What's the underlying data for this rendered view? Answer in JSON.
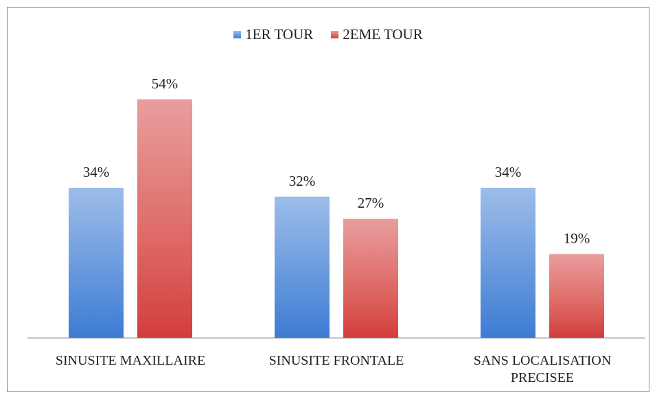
{
  "chart_data": {
    "type": "bar",
    "categories": [
      "SINUSITE MAXILLAIRE",
      "SINUSITE FRONTALE",
      "SANS LOCALISATION PRECISEE"
    ],
    "series": [
      {
        "name": "1ER TOUR",
        "color": "#3c7bd3",
        "values": [
          34,
          32,
          34
        ],
        "value_labels": [
          "34%",
          "32%",
          "34%"
        ]
      },
      {
        "name": "2EME TOUR",
        "color": "#d23c3c",
        "values": [
          54,
          27,
          19
        ],
        "value_labels": [
          "54%",
          "27%",
          "19%"
        ]
      }
    ]
  }
}
